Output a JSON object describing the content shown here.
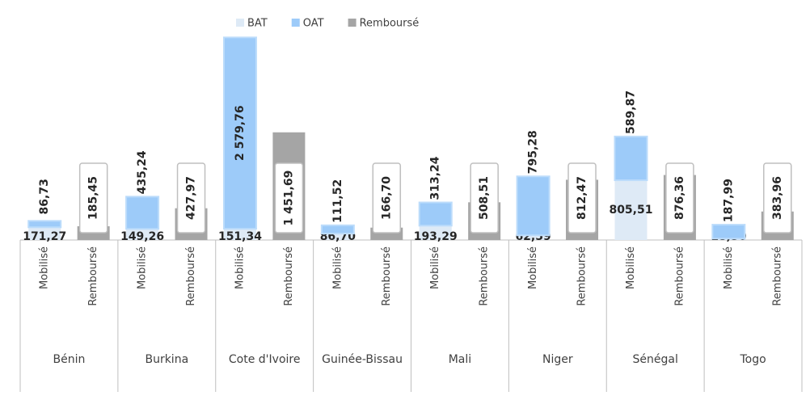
{
  "chart_data": {
    "type": "stacked-bar",
    "categories": [
      "Mobilisé",
      "Remboursé",
      "Mobilisé",
      "Remboursé",
      "Mobilisé",
      "Remboursé",
      "Mobilisé",
      "Remboursé",
      "Mobilisé",
      "Remboursé",
      "Mobilisé",
      "Remboursé",
      "Mobilisé",
      "Remboursé",
      "Mobilisé",
      "Remboursé"
    ],
    "groups": [
      "Bénin",
      "Burkina",
      "Cote d'Ivoire",
      "Guinée-Bissau",
      "Mali",
      "Niger",
      "Sénégal",
      "Togo"
    ],
    "ylim": [
      0,
      2800
    ],
    "legend": "top",
    "series": [
      {
        "name": "BAT",
        "color": "#deeaf6",
        "values": [
          171.27,
          null,
          149.26,
          null,
          151.34,
          null,
          86.7,
          null,
          193.29,
          null,
          62.59,
          null,
          805.51,
          null,
          18.5,
          null
        ],
        "value_labels": [
          "171,27",
          null,
          "149,26",
          null,
          "151,34",
          null,
          "86,70",
          null,
          "193,29",
          null,
          "62,59",
          null,
          "805,51",
          null,
          "18,50",
          null
        ]
      },
      {
        "name": "OAT",
        "color": "#9dcbf9",
        "values": [
          86.73,
          null,
          435.24,
          null,
          2579.76,
          null,
          111.52,
          null,
          313.24,
          null,
          795.28,
          null,
          589.87,
          null,
          187.99,
          null
        ],
        "value_labels": [
          "86,73",
          null,
          "435,24",
          null,
          "2 579,76",
          null,
          "111,52",
          null,
          "313,24",
          null,
          "795,28",
          null,
          "589,87",
          null,
          "187,99",
          null
        ]
      },
      {
        "name": "Remboursé",
        "color": "#a5a5a5",
        "values": [
          null,
          185.45,
          null,
          427.97,
          null,
          1451.69,
          null,
          166.7,
          null,
          508.51,
          null,
          812.47,
          null,
          876.36,
          null,
          383.96
        ],
        "value_labels": [
          null,
          "185,45",
          null,
          "427,97",
          null,
          "1 451,69",
          null,
          "166,70",
          null,
          "508,51",
          null,
          "812,47",
          null,
          "876,36",
          null,
          "383,96"
        ]
      }
    ]
  }
}
